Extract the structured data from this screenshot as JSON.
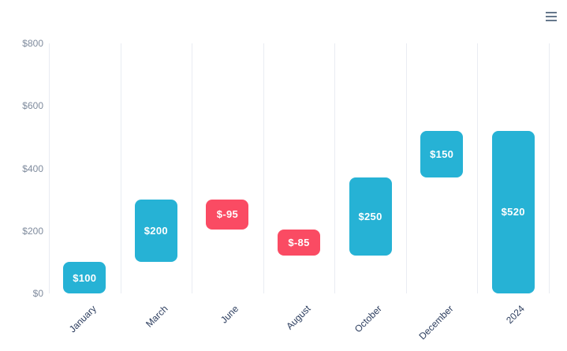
{
  "toolbar": {
    "context_menu_icon": "hamburger-menu"
  },
  "chart_data": {
    "type": "bar",
    "subtype": "waterfall",
    "title": "",
    "legend": "none",
    "grid": "vertical-only",
    "categories": [
      "January",
      "March",
      "June",
      "August",
      "October",
      "December",
      "2024"
    ],
    "bars": [
      {
        "category": "January",
        "label": "$100",
        "value": 100,
        "start": 0,
        "end": 100,
        "sign": "positive"
      },
      {
        "category": "March",
        "label": "$200",
        "value": 200,
        "start": 100,
        "end": 300,
        "sign": "positive"
      },
      {
        "category": "June",
        "label": "$-95",
        "value": -95,
        "start": 205,
        "end": 300,
        "sign": "negative"
      },
      {
        "category": "August",
        "label": "$-85",
        "value": -85,
        "start": 120,
        "end": 205,
        "sign": "negative"
      },
      {
        "category": "October",
        "label": "$250",
        "value": 250,
        "start": 120,
        "end": 370,
        "sign": "positive"
      },
      {
        "category": "December",
        "label": "$150",
        "value": 150,
        "start": 370,
        "end": 520,
        "sign": "positive"
      },
      {
        "category": "2024",
        "label": "$520",
        "value": 520,
        "start": 0,
        "end": 520,
        "sign": "positive"
      }
    ],
    "y_axis": {
      "range": [
        0,
        800
      ],
      "ticks": [
        {
          "label": "$800",
          "value": 800
        },
        {
          "label": "$600",
          "value": 600
        },
        {
          "label": "$400",
          "value": 400
        },
        {
          "label": "$200",
          "value": 200
        },
        {
          "label": "$0",
          "value": 0
        }
      ]
    },
    "colors": {
      "positive": "#26b2d5",
      "negative": "#fa4b63",
      "grid": "#e9ecf2",
      "y_label": "#7f8b9d",
      "x_label": "#2d3e5f",
      "bar_label": "#ffffff",
      "menu_icon": "#66788c"
    }
  }
}
